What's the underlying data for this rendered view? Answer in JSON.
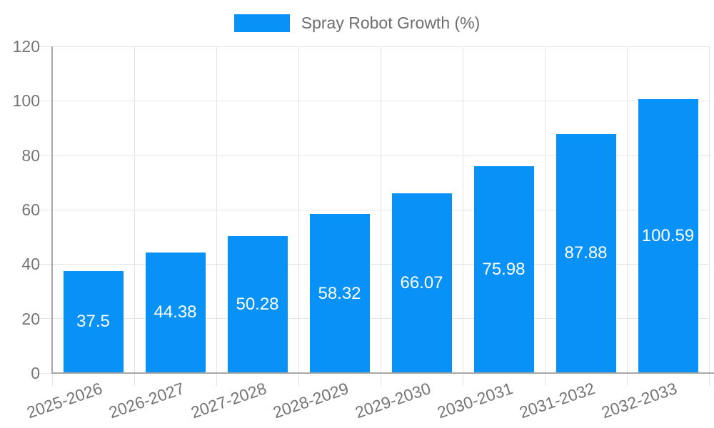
{
  "chart_data": {
    "type": "bar",
    "title": "",
    "categories": [
      "2025-2026",
      "2026-2027",
      "2027-2028",
      "2028-2029",
      "2029-2030",
      "2030-2031",
      "2031-2032",
      "2032-2033"
    ],
    "series": [
      {
        "name": "Spray Robot Growth (%)",
        "values": [
          37.5,
          44.38,
          50.28,
          58.32,
          66.07,
          75.98,
          87.88,
          100.59
        ]
      }
    ],
    "value_labels": [
      "37.5",
      "44.38",
      "50.28",
      "58.32",
      "66.07",
      "75.98",
      "87.88",
      "100.59"
    ],
    "xlabel": "",
    "ylabel": "",
    "ylim": [
      0,
      120
    ],
    "yticks": [
      0,
      20,
      40,
      60,
      80,
      100,
      120
    ],
    "grid": "both",
    "legend_position": "top-center",
    "x_tick_rotation_deg": -19,
    "colors": {
      "bar": "#0892f8",
      "tick_label": "#757575",
      "value_label": "#ffffff",
      "gridline": "#e6e6e6",
      "axis_line": "#a8a8a8"
    }
  }
}
